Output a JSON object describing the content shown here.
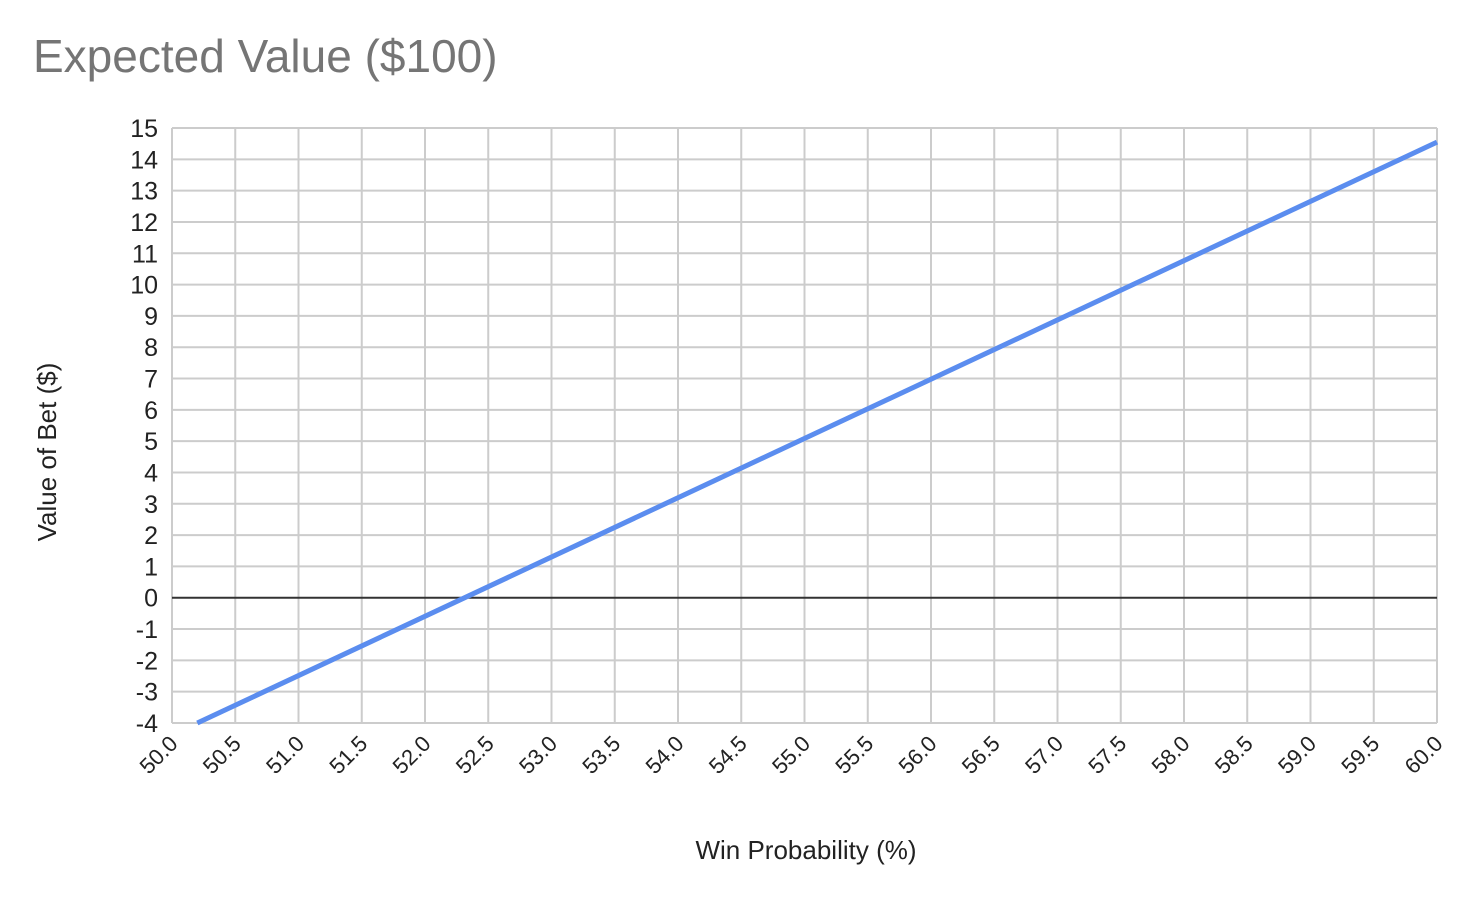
{
  "chart_data": {
    "type": "line",
    "title": "Expected Value ($100)",
    "xlabel": "Win Probability (%)",
    "ylabel": "Value of Bet ($)",
    "xlim": [
      50.0,
      60.0
    ],
    "ylim": [
      -4,
      15
    ],
    "x_ticks": [
      "50.0",
      "50.5",
      "51.0",
      "51.5",
      "52.0",
      "52.5",
      "53.0",
      "53.5",
      "54.0",
      "54.5",
      "55.0",
      "55.5",
      "56.0",
      "56.5",
      "57.0",
      "57.5",
      "58.0",
      "58.5",
      "59.0",
      "59.5",
      "60.0"
    ],
    "y_ticks": [
      "15",
      "14",
      "13",
      "12",
      "11",
      "10",
      "9",
      "8",
      "7",
      "6",
      "5",
      "4",
      "3",
      "2",
      "1",
      "0",
      "-1",
      "-2",
      "-3",
      "-4"
    ],
    "grid": true,
    "series": [
      {
        "x": [
          50.2,
          60.0
        ],
        "y": [
          -4.0,
          14.55
        ],
        "color": "#5b8def"
      }
    ],
    "zero_line_color": "#333333",
    "grid_color": "#cccccc"
  }
}
